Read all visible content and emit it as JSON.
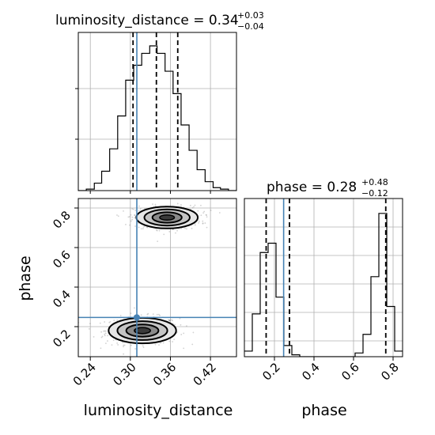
{
  "chart_data": {
    "type": "corner",
    "parameters": [
      "luminosity_distance",
      "phase"
    ],
    "titles": [
      {
        "label": "luminosity_distance = 0.34",
        "sup": "+0.03",
        "sub": "−0.04"
      },
      {
        "label": "phase = 0.28",
        "sup": "+0.48",
        "sub": "−0.12"
      }
    ],
    "axis_labels": {
      "x": [
        "luminosity_distance",
        "phase"
      ],
      "y": [
        "phase"
      ]
    },
    "xticks": {
      "luminosity_distance": {
        "values": [
          0.24,
          0.3,
          0.36,
          0.42
        ],
        "labels": [
          "0.24",
          "0.30",
          "0.36",
          "0.42"
        ]
      },
      "phase": {
        "values": [
          0.2,
          0.4,
          0.6,
          0.8
        ],
        "labels": [
          "0.2",
          "0.4",
          "0.6",
          "0.8"
        ]
      }
    },
    "yticks": {
      "phase": {
        "values": [
          0.2,
          0.4,
          0.6,
          0.8
        ],
        "labels": [
          "0.2",
          "0.4",
          "0.6",
          "0.8"
        ]
      }
    },
    "ranges": {
      "luminosity_distance": [
        0.222,
        0.459
      ],
      "phase": [
        0.048,
        0.848
      ]
    },
    "truth": {
      "luminosity_distance": 0.3097,
      "phase": 0.2465,
      "color": "#4682b4"
    },
    "quantiles": {
      "luminosity_distance": [
        0.304,
        0.339,
        0.371
      ],
      "phase": [
        0.158,
        0.276,
        0.763
      ]
    },
    "histograms": {
      "luminosity_distance": {
        "edges": [
          0.222,
          0.234,
          0.246,
          0.257,
          0.269,
          0.281,
          0.293,
          0.305,
          0.317,
          0.329,
          0.34,
          0.352,
          0.364,
          0.376,
          0.388,
          0.4,
          0.412,
          0.424,
          0.435,
          0.447,
          0.459
        ],
        "counts": [
          0.0,
          0.01,
          0.05,
          0.13,
          0.28,
          0.5,
          0.74,
          0.84,
          0.92,
          0.97,
          0.92,
          0.8,
          0.65,
          0.44,
          0.27,
          0.14,
          0.06,
          0.02,
          0.01,
          0.0
        ]
      },
      "phase": {
        "edges": [
          0.048,
          0.088,
          0.128,
          0.168,
          0.208,
          0.248,
          0.288,
          0.328,
          0.368,
          0.408,
          0.448,
          0.488,
          0.528,
          0.568,
          0.608,
          0.648,
          0.688,
          0.728,
          0.768,
          0.808,
          0.848
        ],
        "counts": [
          0.03,
          0.23,
          0.56,
          0.61,
          0.32,
          0.06,
          0.01,
          0.0,
          0.0,
          0.0,
          0.0,
          0.0,
          0.0,
          0.0,
          0.02,
          0.12,
          0.43,
          0.77,
          0.27,
          0.03
        ]
      }
    },
    "density_modes": [
      {
        "x": 0.318,
        "y": 0.18,
        "sx": 0.022,
        "sy": 0.028
      },
      {
        "x": 0.355,
        "y": 0.752,
        "sx": 0.02,
        "sy": 0.024
      }
    ],
    "grid": true,
    "colors": {
      "hist": "#000000",
      "truth": "#4682b4",
      "quantile": "#000000",
      "grid": "#b0b0b0",
      "points": "#7f7f7f"
    }
  }
}
